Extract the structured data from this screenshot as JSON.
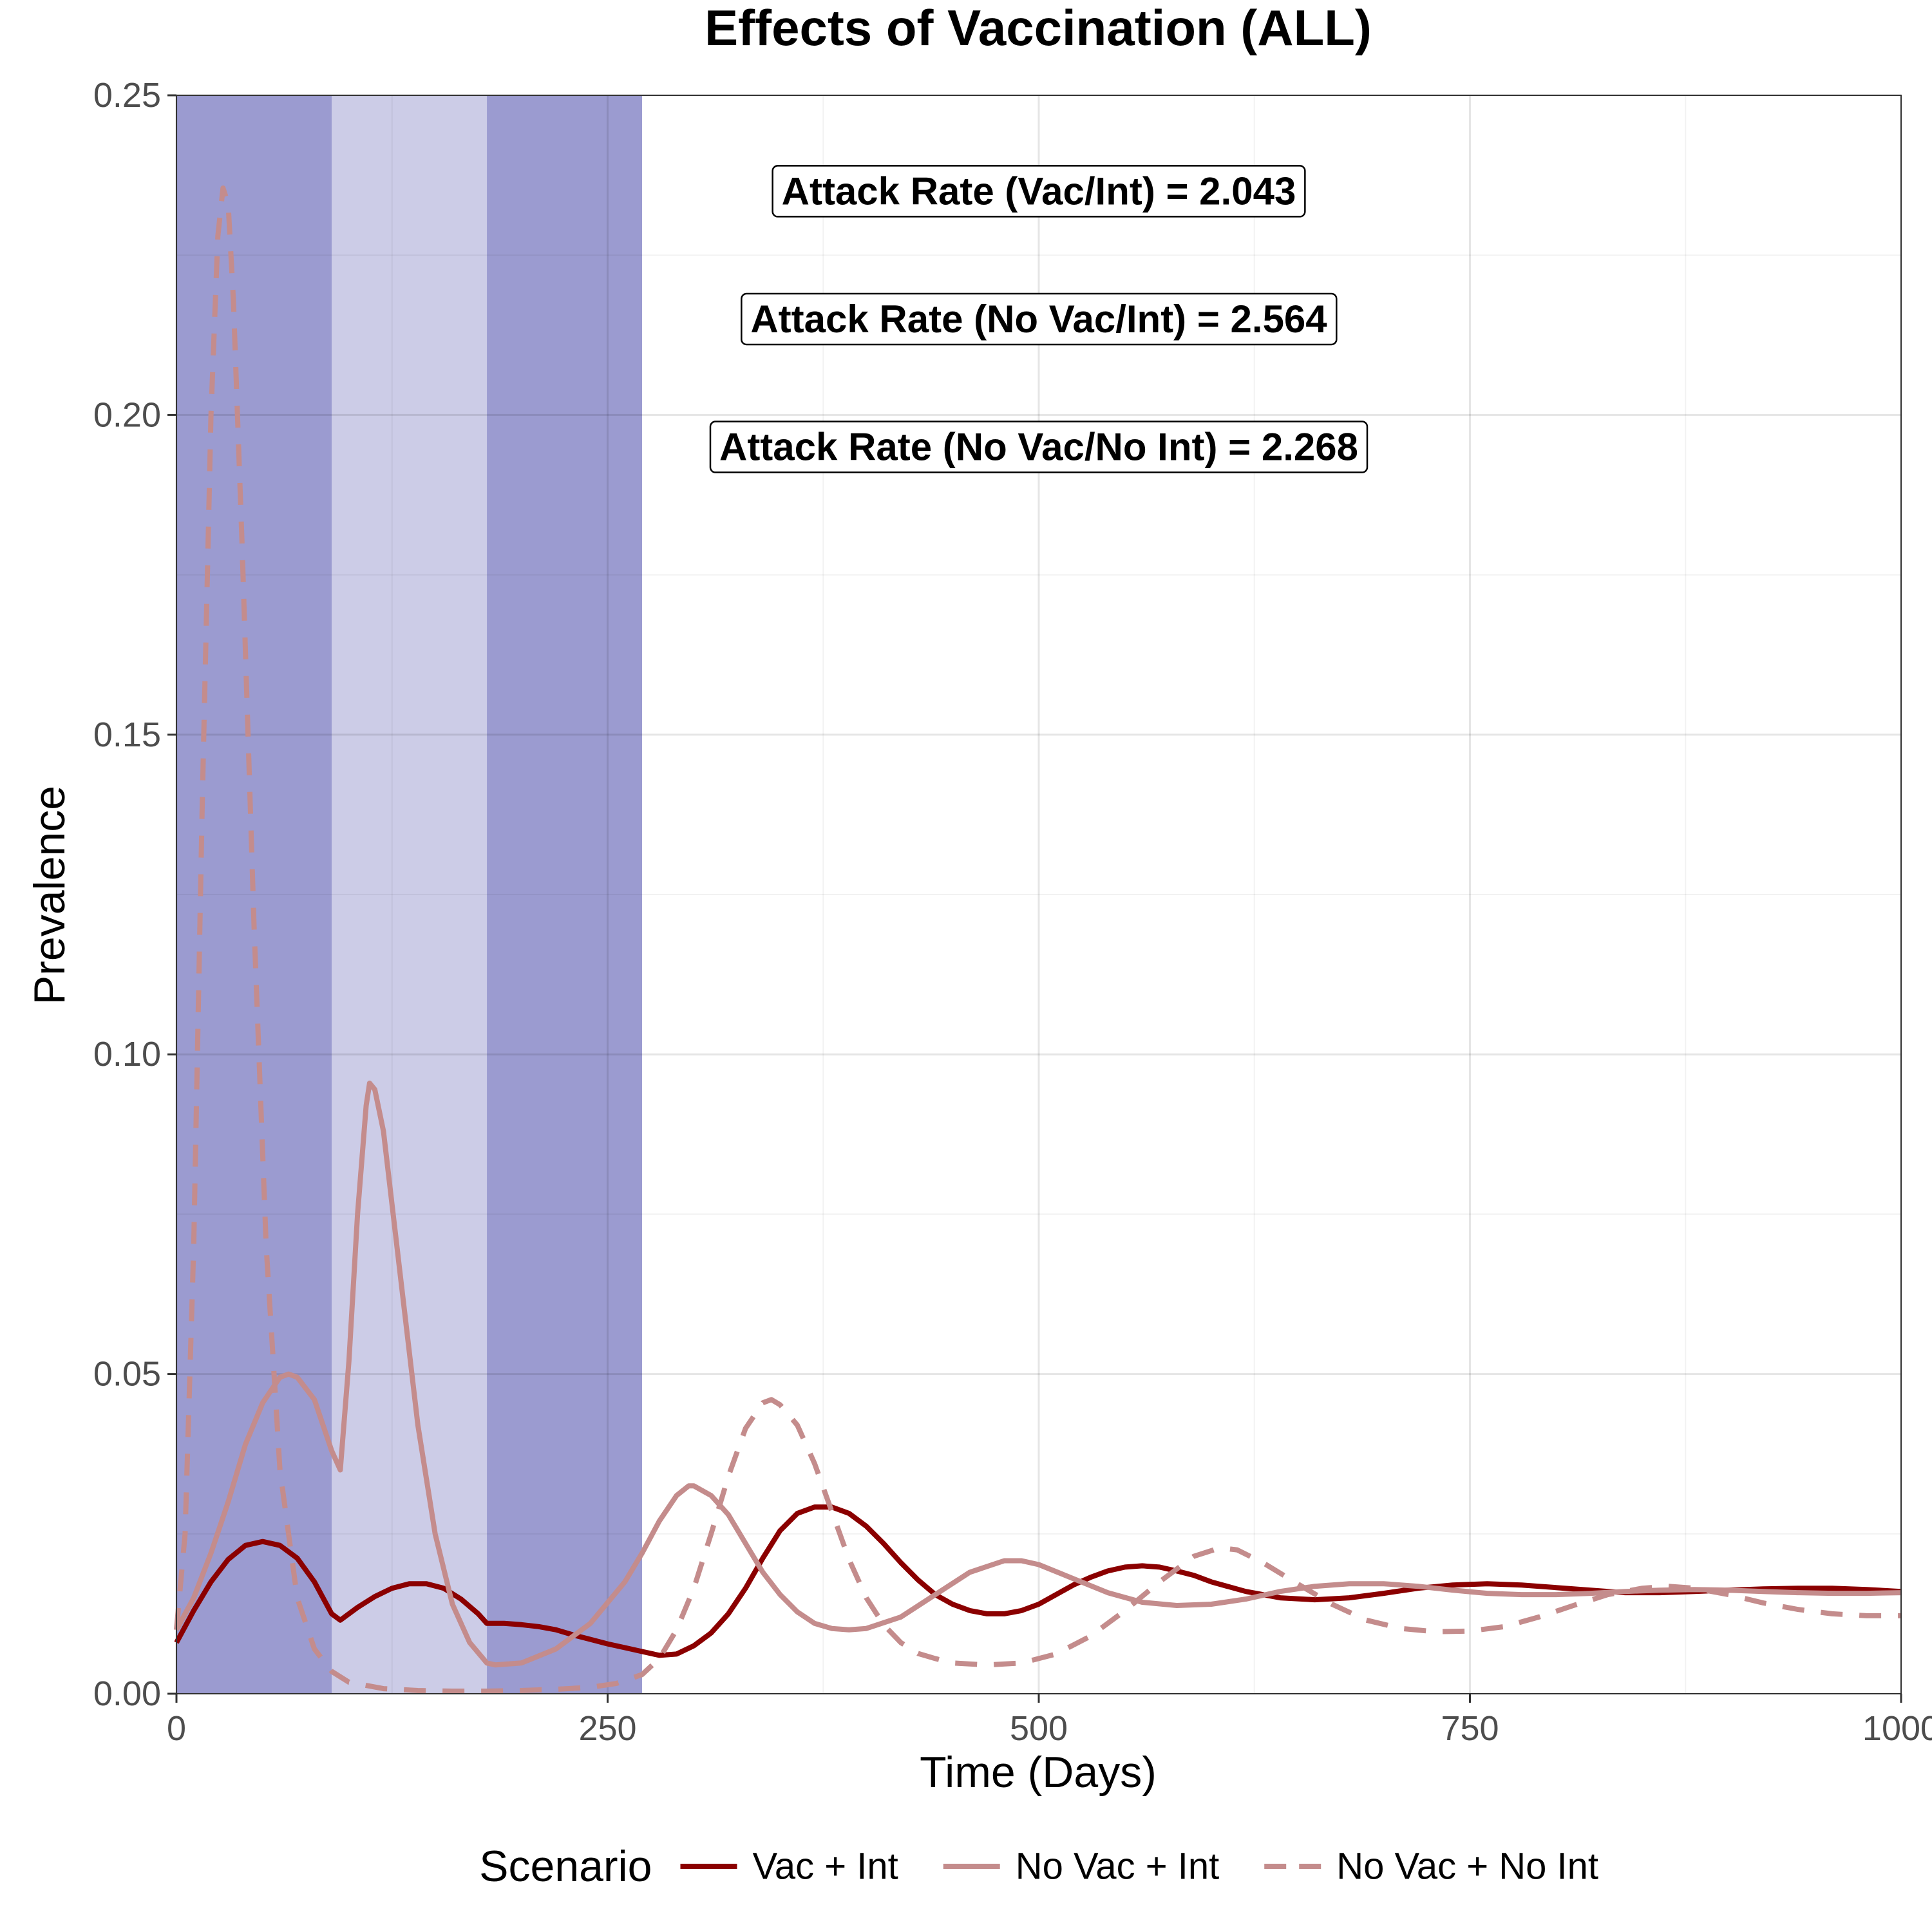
{
  "chart_data": {
    "type": "line",
    "title": "Effects of Vaccination (ALL)",
    "xlabel": "Time (Days)",
    "ylabel": "Prevalence",
    "xlim": [
      0,
      1000
    ],
    "ylim": [
      0,
      0.25
    ],
    "x_ticks": [
      0,
      250,
      500,
      750,
      1000
    ],
    "x_tick_labels": [
      "0",
      "250",
      "500",
      "750",
      "1000"
    ],
    "y_ticks": [
      0,
      0.05,
      0.1,
      0.15,
      0.2,
      0.25
    ],
    "y_tick_labels": [
      "0.00",
      "0.05",
      "0.10",
      "0.15",
      "0.20",
      "0.25"
    ],
    "grid": true,
    "legend": {
      "title": "Scenario",
      "position": "bottom"
    },
    "shaded_regions": [
      {
        "x_start": 0,
        "x_end": 90,
        "color": "#9b9bd0"
      },
      {
        "x_start": 90,
        "x_end": 180,
        "color": "#cccce7"
      },
      {
        "x_start": 180,
        "x_end": 270,
        "color": "#9b9bd0"
      }
    ],
    "annotations": [
      {
        "text": "Attack Rate (Vac/Int) = 2.043",
        "x": 500,
        "y": 0.235
      },
      {
        "text": "Attack Rate (No Vac/Int) = 2.564",
        "x": 500,
        "y": 0.215
      },
      {
        "text": "Attack Rate (No Vac/No Int) = 2.268",
        "x": 500,
        "y": 0.195
      }
    ],
    "series": [
      {
        "name": "Vac + Int",
        "color": "#8b0000",
        "dash": "solid",
        "points": [
          [
            0,
            0.008
          ],
          [
            10,
            0.013
          ],
          [
            20,
            0.0175
          ],
          [
            30,
            0.021
          ],
          [
            40,
            0.0232
          ],
          [
            50,
            0.0238
          ],
          [
            60,
            0.0232
          ],
          [
            70,
            0.0212
          ],
          [
            80,
            0.0175
          ],
          [
            90,
            0.0125
          ],
          [
            95,
            0.0115
          ],
          [
            105,
            0.0135
          ],
          [
            115,
            0.0152
          ],
          [
            125,
            0.0165
          ],
          [
            135,
            0.0172
          ],
          [
            145,
            0.0172
          ],
          [
            155,
            0.0165
          ],
          [
            165,
            0.0148
          ],
          [
            175,
            0.0125
          ],
          [
            180,
            0.011
          ],
          [
            190,
            0.011
          ],
          [
            200,
            0.0108
          ],
          [
            210,
            0.0105
          ],
          [
            220,
            0.01
          ],
          [
            230,
            0.0092
          ],
          [
            240,
            0.0085
          ],
          [
            250,
            0.0078
          ],
          [
            260,
            0.0072
          ],
          [
            270,
            0.0066
          ],
          [
            280,
            0.006
          ],
          [
            290,
            0.0062
          ],
          [
            300,
            0.0075
          ],
          [
            310,
            0.0095
          ],
          [
            320,
            0.0125
          ],
          [
            330,
            0.0165
          ],
          [
            340,
            0.0212
          ],
          [
            350,
            0.0255
          ],
          [
            360,
            0.0282
          ],
          [
            370,
            0.0292
          ],
          [
            380,
            0.0292
          ],
          [
            390,
            0.0282
          ],
          [
            400,
            0.0262
          ],
          [
            410,
            0.0235
          ],
          [
            420,
            0.0205
          ],
          [
            430,
            0.0178
          ],
          [
            440,
            0.0155
          ],
          [
            450,
            0.014
          ],
          [
            460,
            0.013
          ],
          [
            470,
            0.0125
          ],
          [
            480,
            0.0125
          ],
          [
            490,
            0.013
          ],
          [
            500,
            0.014
          ],
          [
            510,
            0.0155
          ],
          [
            520,
            0.017
          ],
          [
            530,
            0.0182
          ],
          [
            540,
            0.0192
          ],
          [
            550,
            0.0198
          ],
          [
            560,
            0.02
          ],
          [
            570,
            0.0198
          ],
          [
            580,
            0.0192
          ],
          [
            590,
            0.0185
          ],
          [
            600,
            0.0175
          ],
          [
            620,
            0.016
          ],
          [
            640,
            0.015
          ],
          [
            660,
            0.0147
          ],
          [
            680,
            0.015
          ],
          [
            700,
            0.0157
          ],
          [
            720,
            0.0165
          ],
          [
            740,
            0.017
          ],
          [
            760,
            0.0172
          ],
          [
            780,
            0.017
          ],
          [
            800,
            0.0166
          ],
          [
            820,
            0.0162
          ],
          [
            840,
            0.0158
          ],
          [
            860,
            0.0158
          ],
          [
            880,
            0.016
          ],
          [
            900,
            0.0162
          ],
          [
            920,
            0.0164
          ],
          [
            940,
            0.0165
          ],
          [
            960,
            0.0165
          ],
          [
            980,
            0.0163
          ],
          [
            1000,
            0.016
          ]
        ]
      },
      {
        "name": "No Vac + Int",
        "color": "#c48c8c",
        "dash": "solid",
        "points": [
          [
            0,
            0.01
          ],
          [
            10,
            0.015
          ],
          [
            20,
            0.022
          ],
          [
            30,
            0.03
          ],
          [
            40,
            0.039
          ],
          [
            50,
            0.0455
          ],
          [
            60,
            0.0495
          ],
          [
            65,
            0.05
          ],
          [
            70,
            0.0495
          ],
          [
            80,
            0.046
          ],
          [
            90,
            0.038
          ],
          [
            95,
            0.035
          ],
          [
            100,
            0.052
          ],
          [
            105,
            0.075
          ],
          [
            110,
            0.092
          ],
          [
            112,
            0.0955
          ],
          [
            115,
            0.0945
          ],
          [
            120,
            0.088
          ],
          [
            130,
            0.065
          ],
          [
            140,
            0.042
          ],
          [
            150,
            0.025
          ],
          [
            160,
            0.014
          ],
          [
            170,
            0.008
          ],
          [
            180,
            0.0048
          ],
          [
            185,
            0.0045
          ],
          [
            200,
            0.0048
          ],
          [
            220,
            0.007
          ],
          [
            240,
            0.011
          ],
          [
            260,
            0.0175
          ],
          [
            270,
            0.022
          ],
          [
            280,
            0.027
          ],
          [
            290,
            0.031
          ],
          [
            297,
            0.0325
          ],
          [
            300,
            0.0325
          ],
          [
            310,
            0.031
          ],
          [
            320,
            0.028
          ],
          [
            330,
            0.0235
          ],
          [
            340,
            0.019
          ],
          [
            350,
            0.0155
          ],
          [
            360,
            0.0128
          ],
          [
            370,
            0.011
          ],
          [
            380,
            0.0102
          ],
          [
            390,
            0.01
          ],
          [
            400,
            0.0102
          ],
          [
            420,
            0.012
          ],
          [
            440,
            0.0155
          ],
          [
            460,
            0.019
          ],
          [
            480,
            0.0208
          ],
          [
            490,
            0.0208
          ],
          [
            500,
            0.0202
          ],
          [
            520,
            0.018
          ],
          [
            540,
            0.0158
          ],
          [
            560,
            0.0143
          ],
          [
            580,
            0.0138
          ],
          [
            600,
            0.014
          ],
          [
            620,
            0.0148
          ],
          [
            640,
            0.016
          ],
          [
            660,
            0.0168
          ],
          [
            680,
            0.0172
          ],
          [
            700,
            0.0172
          ],
          [
            720,
            0.0168
          ],
          [
            740,
            0.0162
          ],
          [
            760,
            0.0157
          ],
          [
            780,
            0.0155
          ],
          [
            800,
            0.0155
          ],
          [
            820,
            0.0157
          ],
          [
            840,
            0.016
          ],
          [
            860,
            0.0162
          ],
          [
            880,
            0.0163
          ],
          [
            900,
            0.0162
          ],
          [
            920,
            0.016
          ],
          [
            940,
            0.0158
          ],
          [
            960,
            0.0157
          ],
          [
            980,
            0.0157
          ],
          [
            1000,
            0.0158
          ]
        ]
      },
      {
        "name": "No Vac + No Int",
        "color": "#c48c8c",
        "dash": "dashed",
        "points": [
          [
            0,
            0.01
          ],
          [
            5,
            0.025
          ],
          [
            10,
            0.07
          ],
          [
            15,
            0.14
          ],
          [
            20,
            0.2
          ],
          [
            24,
            0.228
          ],
          [
            27,
            0.2355
          ],
          [
            30,
            0.233
          ],
          [
            33,
            0.218
          ],
          [
            38,
            0.18
          ],
          [
            45,
            0.12
          ],
          [
            52,
            0.07
          ],
          [
            60,
            0.035
          ],
          [
            70,
            0.015
          ],
          [
            80,
            0.007
          ],
          [
            90,
            0.0035
          ],
          [
            100,
            0.0018
          ],
          [
            120,
            0.0008
          ],
          [
            140,
            0.0005
          ],
          [
            160,
            0.0004
          ],
          [
            180,
            0.0004
          ],
          [
            200,
            0.0005
          ],
          [
            220,
            0.0007
          ],
          [
            240,
            0.001
          ],
          [
            255,
            0.0016
          ],
          [
            270,
            0.003
          ],
          [
            280,
            0.0055
          ],
          [
            290,
            0.01
          ],
          [
            300,
            0.0165
          ],
          [
            310,
            0.025
          ],
          [
            320,
            0.034
          ],
          [
            330,
            0.0415
          ],
          [
            340,
            0.0455
          ],
          [
            345,
            0.046
          ],
          [
            350,
            0.0452
          ],
          [
            360,
            0.042
          ],
          [
            370,
            0.036
          ],
          [
            380,
            0.0285
          ],
          [
            390,
            0.021
          ],
          [
            400,
            0.015
          ],
          [
            410,
            0.0108
          ],
          [
            420,
            0.008
          ],
          [
            430,
            0.0063
          ],
          [
            440,
            0.0055
          ],
          [
            450,
            0.0048
          ],
          [
            470,
            0.0045
          ],
          [
            490,
            0.0048
          ],
          [
            510,
            0.0062
          ],
          [
            530,
            0.009
          ],
          [
            550,
            0.013
          ],
          [
            570,
            0.0175
          ],
          [
            590,
            0.0215
          ],
          [
            605,
            0.0228
          ],
          [
            615,
            0.0225
          ],
          [
            630,
            0.0205
          ],
          [
            650,
            0.0172
          ],
          [
            670,
            0.014
          ],
          [
            690,
            0.0115
          ],
          [
            710,
            0.0102
          ],
          [
            730,
            0.0097
          ],
          [
            750,
            0.0098
          ],
          [
            770,
            0.0105
          ],
          [
            790,
            0.012
          ],
          [
            810,
            0.0138
          ],
          [
            830,
            0.0155
          ],
          [
            850,
            0.0165
          ],
          [
            865,
            0.0168
          ],
          [
            880,
            0.0165
          ],
          [
            900,
            0.0155
          ],
          [
            920,
            0.0142
          ],
          [
            940,
            0.0132
          ],
          [
            960,
            0.0125
          ],
          [
            980,
            0.0122
          ],
          [
            1000,
            0.0122
          ]
        ]
      }
    ]
  }
}
